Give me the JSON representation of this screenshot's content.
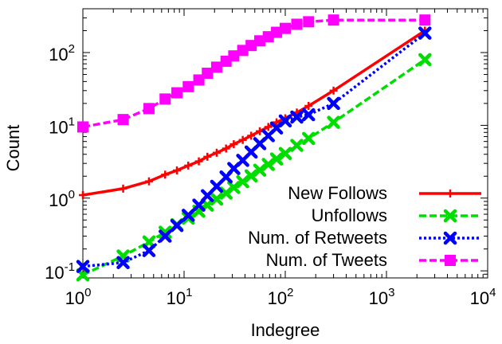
{
  "chart_data": {
    "type": "line",
    "xlabel": "Indegree",
    "ylabel": "Count",
    "xscale": "log",
    "yscale": "log",
    "xlim": [
      1,
      10000
    ],
    "ylim": [
      0.08,
      400
    ],
    "grid": false,
    "legend_position": "bottom-right",
    "x_ticks": [
      {
        "value": 1,
        "base": "10",
        "exp": "0"
      },
      {
        "value": 10,
        "base": "10",
        "exp": "1"
      },
      {
        "value": 100,
        "base": "10",
        "exp": "2"
      },
      {
        "value": 1000,
        "base": "10",
        "exp": "3"
      },
      {
        "value": 10000,
        "base": "10",
        "exp": "4"
      }
    ],
    "y_ticks": [
      {
        "value": 0.1,
        "base": "10",
        "exp": "-1"
      },
      {
        "value": 1,
        "base": "10",
        "exp": "0"
      },
      {
        "value": 10,
        "base": "10",
        "exp": "1"
      },
      {
        "value": 100,
        "base": "10",
        "exp": "2"
      }
    ],
    "series": [
      {
        "name": "New Follows",
        "color": "#ff0000",
        "marker": "plus",
        "dash": "solid",
        "points": [
          [
            1,
            1.1
          ],
          [
            2.5,
            1.35
          ],
          [
            4.5,
            1.7
          ],
          [
            6.5,
            2.1
          ],
          [
            8.5,
            2.4
          ],
          [
            11,
            2.8
          ],
          [
            14,
            3.2
          ],
          [
            17,
            3.7
          ],
          [
            21,
            4.2
          ],
          [
            26,
            4.8
          ],
          [
            31,
            5.5
          ],
          [
            38,
            6.3
          ],
          [
            46,
            7.2
          ],
          [
            56,
            8.3
          ],
          [
            68,
            9.5
          ],
          [
            82,
            11
          ],
          [
            100,
            12.5
          ],
          [
            130,
            15
          ],
          [
            170,
            18.5
          ],
          [
            300,
            30
          ],
          [
            2400,
            200
          ]
        ]
      },
      {
        "name": "Unfollows",
        "color": "#00dd00",
        "marker": "x",
        "dash": "dash",
        "points": [
          [
            1,
            0.088
          ],
          [
            2.5,
            0.16
          ],
          [
            4.5,
            0.25
          ],
          [
            6.5,
            0.34
          ],
          [
            8.5,
            0.43
          ],
          [
            11,
            0.53
          ],
          [
            14,
            0.66
          ],
          [
            17,
            0.8
          ],
          [
            21,
            0.97
          ],
          [
            26,
            1.17
          ],
          [
            31,
            1.4
          ],
          [
            38,
            1.68
          ],
          [
            46,
            2.02
          ],
          [
            56,
            2.42
          ],
          [
            68,
            2.9
          ],
          [
            82,
            3.45
          ],
          [
            100,
            4.1
          ],
          [
            130,
            5.3
          ],
          [
            170,
            6.6
          ],
          [
            300,
            11
          ],
          [
            2400,
            80
          ]
        ]
      },
      {
        "name": "Num. of Retweets",
        "color": "#0000ff",
        "marker": "x",
        "dash": "dot",
        "points": [
          [
            1,
            0.115
          ],
          [
            2.5,
            0.13
          ],
          [
            4.5,
            0.19
          ],
          [
            6.5,
            0.3
          ],
          [
            8.5,
            0.42
          ],
          [
            11,
            0.58
          ],
          [
            14,
            0.8
          ],
          [
            17,
            1.08
          ],
          [
            21,
            1.45
          ],
          [
            26,
            1.95
          ],
          [
            31,
            2.55
          ],
          [
            38,
            3.3
          ],
          [
            46,
            4.3
          ],
          [
            56,
            5.6
          ],
          [
            68,
            7.2
          ],
          [
            82,
            9.2
          ],
          [
            100,
            11.5
          ],
          [
            130,
            13
          ],
          [
            170,
            14
          ],
          [
            300,
            20
          ],
          [
            2400,
            185
          ]
        ]
      },
      {
        "name": "Num. of Tweets",
        "color": "#ff00ff",
        "marker": "square",
        "dash": "dash",
        "points": [
          [
            1,
            9.5
          ],
          [
            2.5,
            12
          ],
          [
            4.5,
            17
          ],
          [
            6.5,
            23
          ],
          [
            8.5,
            28
          ],
          [
            11,
            34
          ],
          [
            14,
            42
          ],
          [
            17,
            52
          ],
          [
            21,
            63
          ],
          [
            26,
            76
          ],
          [
            31,
            90
          ],
          [
            38,
            107
          ],
          [
            46,
            125
          ],
          [
            56,
            145
          ],
          [
            68,
            165
          ],
          [
            82,
            190
          ],
          [
            100,
            215
          ],
          [
            130,
            245
          ],
          [
            170,
            265
          ],
          [
            300,
            280
          ],
          [
            2400,
            280
          ]
        ]
      }
    ]
  }
}
